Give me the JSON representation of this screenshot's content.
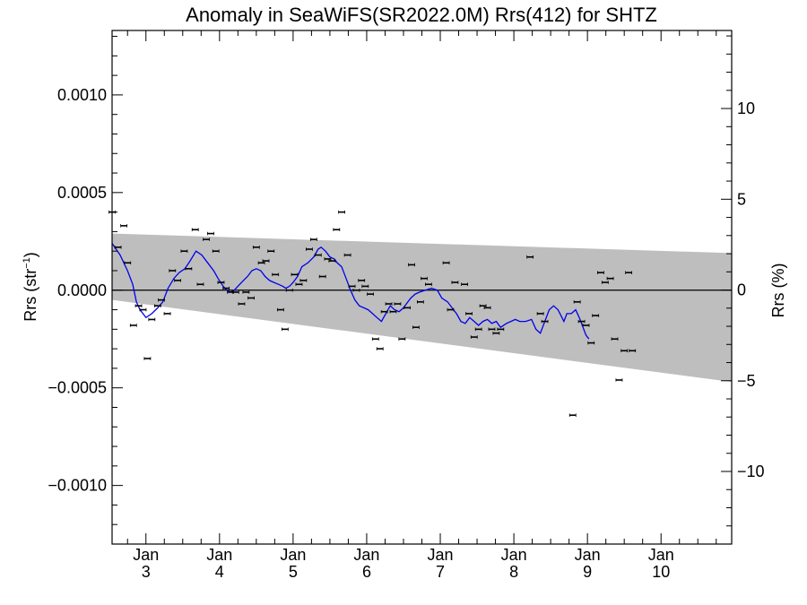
{
  "chart_data": {
    "type": "scatter",
    "title": "Anomaly in SeaWiFS(SR2022.0M) Rrs(412) for SHTZ",
    "ylabel": {
      "main": "Rrs (str",
      "sup": "−1",
      "close": ")"
    },
    "y2label": "Rrs (%)",
    "xlim": [
      2.54,
      10.96
    ],
    "ylim": [
      -0.0013,
      0.00133
    ],
    "y2lim": [
      -14,
      14.3
    ],
    "left_ticks": [
      {
        "v": 0.001,
        "label": "0.0010"
      },
      {
        "v": 0.0005,
        "label": "0.0005"
      },
      {
        "v": 0.0,
        "label": "0.0000"
      },
      {
        "v": -0.0005,
        "label": "−0.0005"
      },
      {
        "v": -0.001,
        "label": "−0.0010"
      }
    ],
    "right_ticks": [
      {
        "v": 10,
        "label": "10"
      },
      {
        "v": 5,
        "label": "5"
      },
      {
        "v": 0,
        "label": "0"
      },
      {
        "v": -5,
        "label": "−5"
      },
      {
        "v": -10,
        "label": "−10"
      }
    ],
    "x_ticks": [
      {
        "v": 3,
        "line1": "Jan",
        "line2": "3"
      },
      {
        "v": 4,
        "line1": "Jan",
        "line2": "4"
      },
      {
        "v": 5,
        "line1": "Jan",
        "line2": "5"
      },
      {
        "v": 6,
        "line1": "Jan",
        "line2": "6"
      },
      {
        "v": 7,
        "line1": "Jan",
        "line2": "7"
      },
      {
        "v": 8,
        "line1": "Jan",
        "line2": "8"
      },
      {
        "v": 9,
        "line1": "Jan",
        "line2": "9"
      },
      {
        "v": 10,
        "line1": "Jan",
        "line2": "10"
      }
    ],
    "band": {
      "color": "#bebebe",
      "upper": [
        [
          2.54,
          0.00029
        ],
        [
          10.96,
          0.00019
        ]
      ],
      "lower": [
        [
          2.54,
          -5e-05
        ],
        [
          10.96,
          -0.00047
        ]
      ]
    },
    "zero_line": 0,
    "points_color": "#000000",
    "line_color": "#0000ee",
    "points": [
      [
        2.54,
        0.0004
      ],
      [
        2.62,
        0.00022
      ],
      [
        2.7,
        0.00033
      ],
      [
        2.75,
        0.00014
      ],
      [
        2.83,
        -0.00018
      ],
      [
        2.9,
        -8e-05
      ],
      [
        2.96,
        -0.0001
      ],
      [
        3.02,
        -0.00035
      ],
      [
        3.08,
        -0.00015
      ],
      [
        3.16,
        -8e-05
      ],
      [
        3.21,
        -5e-05
      ],
      [
        3.29,
        -0.00012
      ],
      [
        3.36,
        0.0001
      ],
      [
        3.43,
        5e-05
      ],
      [
        3.52,
        0.0002
      ],
      [
        3.58,
        0.00011
      ],
      [
        3.67,
        0.00031
      ],
      [
        3.74,
        3e-05
      ],
      [
        3.82,
        0.00026
      ],
      [
        3.88,
        0.00029
      ],
      [
        3.95,
        0.0002
      ],
      [
        4.02,
        4e-05
      ],
      [
        4.09,
        1e-05
      ],
      [
        4.15,
        -1e-05
      ],
      [
        4.22,
        -1e-05
      ],
      [
        4.3,
        -7e-05
      ],
      [
        4.36,
        -1e-05
      ],
      [
        4.43,
        -4e-05
      ],
      [
        4.5,
        0.00022
      ],
      [
        4.57,
        0.00014
      ],
      [
        4.63,
        0.00015
      ],
      [
        4.7,
        0.0002
      ],
      [
        4.76,
        8e-05
      ],
      [
        4.83,
        -0.0001
      ],
      [
        4.89,
        -0.0002
      ],
      [
        4.95,
        0.0
      ],
      [
        5.02,
        8e-05
      ],
      [
        5.08,
        3e-05
      ],
      [
        5.14,
        5e-05
      ],
      [
        5.22,
        0.00021
      ],
      [
        5.28,
        0.00026
      ],
      [
        5.34,
        0.00018
      ],
      [
        5.4,
        7e-05
      ],
      [
        5.47,
        0.00016
      ],
      [
        5.53,
        0.00015
      ],
      [
        5.59,
        0.00031
      ],
      [
        5.66,
        0.0004
      ],
      [
        5.74,
        0.00018
      ],
      [
        5.8,
        2e-05
      ],
      [
        5.86,
        0.0
      ],
      [
        5.93,
        5e-05
      ],
      [
        5.98,
        2e-05
      ],
      [
        6.05,
        -2e-05
      ],
      [
        6.12,
        -0.00025
      ],
      [
        6.18,
        -0.0003
      ],
      [
        6.24,
        -0.00011
      ],
      [
        6.3,
        -7e-05
      ],
      [
        6.36,
        -0.00011
      ],
      [
        6.42,
        -7e-05
      ],
      [
        6.48,
        -0.00025
      ],
      [
        6.55,
        -9e-05
      ],
      [
        6.61,
        0.00013
      ],
      [
        6.67,
        -0.00019
      ],
      [
        6.73,
        -6e-05
      ],
      [
        6.78,
        6e-05
      ],
      [
        6.84,
        3e-05
      ],
      [
        7.08,
        0.00014
      ],
      [
        7.14,
        -0.0001
      ],
      [
        7.2,
        4e-05
      ],
      [
        7.33,
        3e-05
      ],
      [
        7.39,
        -0.00012
      ],
      [
        7.46,
        -0.00024
      ],
      [
        7.52,
        -0.0002
      ],
      [
        7.58,
        -8e-05
      ],
      [
        7.64,
        -9e-05
      ],
      [
        7.7,
        -0.0002
      ],
      [
        7.76,
        -0.00022
      ],
      [
        7.82,
        -0.0002
      ],
      [
        8.22,
        0.00017
      ],
      [
        8.36,
        -0.00012
      ],
      [
        8.42,
        -0.00016
      ],
      [
        8.8,
        -0.00064
      ],
      [
        8.86,
        -6e-05
      ],
      [
        8.92,
        -0.00016
      ],
      [
        8.98,
        -0.00018
      ],
      [
        9.05,
        -0.00027
      ],
      [
        9.11,
        -0.00013
      ],
      [
        9.18,
        9e-05
      ],
      [
        9.24,
        4e-05
      ],
      [
        9.31,
        6e-05
      ],
      [
        9.37,
        -0.00025
      ],
      [
        9.43,
        -0.00046
      ],
      [
        9.5,
        -0.00031
      ],
      [
        9.56,
        9e-05
      ],
      [
        9.61,
        -0.00031
      ]
    ],
    "smooth": [
      [
        2.54,
        0.00024
      ],
      [
        2.65,
        0.00018
      ],
      [
        2.75,
        0.0001
      ],
      [
        2.82,
        3e-05
      ],
      [
        2.87,
        -6e-05
      ],
      [
        2.92,
        -0.0001
      ],
      [
        3.0,
        -0.00014
      ],
      [
        3.08,
        -0.00012
      ],
      [
        3.16,
        -9e-05
      ],
      [
        3.23,
        -6e-05
      ],
      [
        3.3,
        1e-05
      ],
      [
        3.38,
        6e-05
      ],
      [
        3.45,
        9e-05
      ],
      [
        3.53,
        0.00011
      ],
      [
        3.6,
        0.00015
      ],
      [
        3.68,
        0.0002
      ],
      [
        3.76,
        0.00018
      ],
      [
        3.84,
        0.00014
      ],
      [
        3.92,
        0.0001
      ],
      [
        3.98,
        6e-05
      ],
      [
        4.05,
        2e-05
      ],
      [
        4.1,
        0.0
      ],
      [
        4.15,
        -1e-05
      ],
      [
        4.2,
        0.0
      ],
      [
        4.3,
        4e-05
      ],
      [
        4.38,
        7e-05
      ],
      [
        4.44,
        0.0001
      ],
      [
        4.5,
        0.00011
      ],
      [
        4.56,
        0.0001
      ],
      [
        4.62,
        7e-05
      ],
      [
        4.68,
        5e-05
      ],
      [
        4.74,
        4e-05
      ],
      [
        4.8,
        3e-05
      ],
      [
        4.86,
        2e-05
      ],
      [
        4.9,
        1e-05
      ],
      [
        4.95,
        2e-05
      ],
      [
        5.0,
        4e-05
      ],
      [
        5.06,
        7e-05
      ],
      [
        5.12,
        0.00012
      ],
      [
        5.2,
        0.00014
      ],
      [
        5.28,
        0.00017
      ],
      [
        5.34,
        0.00021
      ],
      [
        5.38,
        0.00022
      ],
      [
        5.44,
        0.0002
      ],
      [
        5.5,
        0.00017
      ],
      [
        5.56,
        0.00016
      ],
      [
        5.6,
        0.00014
      ],
      [
        5.66,
        0.00012
      ],
      [
        5.72,
        6e-05
      ],
      [
        5.78,
        0.0
      ],
      [
        5.84,
        -5e-05
      ],
      [
        5.9,
        -8e-05
      ],
      [
        5.96,
        -9e-05
      ],
      [
        6.02,
        -0.0001
      ],
      [
        6.08,
        -0.00012
      ],
      [
        6.14,
        -0.00014
      ],
      [
        6.2,
        -0.00016
      ],
      [
        6.26,
        -0.00012
      ],
      [
        6.32,
        -8e-05
      ],
      [
        6.38,
        -0.0001
      ],
      [
        6.44,
        -0.00011
      ],
      [
        6.5,
        -9e-05
      ],
      [
        6.56,
        -6e-05
      ],
      [
        6.6,
        -4e-05
      ],
      [
        6.66,
        -2e-05
      ],
      [
        6.72,
        -1e-05
      ],
      [
        6.8,
        0.0
      ],
      [
        6.88,
        1e-05
      ],
      [
        6.96,
        0.0
      ],
      [
        7.02,
        -4e-05
      ],
      [
        7.1,
        -6e-05
      ],
      [
        7.16,
        -9e-05
      ],
      [
        7.22,
        -0.00012
      ],
      [
        7.28,
        -0.00016
      ],
      [
        7.34,
        -0.00017
      ],
      [
        7.4,
        -0.00014
      ],
      [
        7.46,
        -0.00016
      ],
      [
        7.52,
        -0.00018
      ],
      [
        7.58,
        -0.00016
      ],
      [
        7.64,
        -0.00015
      ],
      [
        7.7,
        -0.00017
      ],
      [
        7.76,
        -0.00016
      ],
      [
        7.82,
        -0.00019
      ],
      [
        7.9,
        -0.00017
      ],
      [
        7.96,
        -0.00016
      ],
      [
        8.02,
        -0.00015
      ],
      [
        8.08,
        -0.00016
      ],
      [
        8.16,
        -0.00016
      ],
      [
        8.24,
        -0.00015
      ],
      [
        8.3,
        -0.0002
      ],
      [
        8.36,
        -0.00022
      ],
      [
        8.42,
        -0.00016
      ],
      [
        8.48,
        -0.0001
      ],
      [
        8.54,
        -8e-05
      ],
      [
        8.6,
        -0.0001
      ],
      [
        8.64,
        -0.00013
      ],
      [
        8.68,
        -0.00016
      ],
      [
        8.72,
        -0.00012
      ],
      [
        8.78,
        -0.00012
      ],
      [
        8.84,
        -0.0001
      ],
      [
        8.9,
        -0.00015
      ],
      [
        8.94,
        -0.00019
      ],
      [
        8.98,
        -0.00023
      ],
      [
        9.02,
        -0.00025
      ]
    ]
  }
}
